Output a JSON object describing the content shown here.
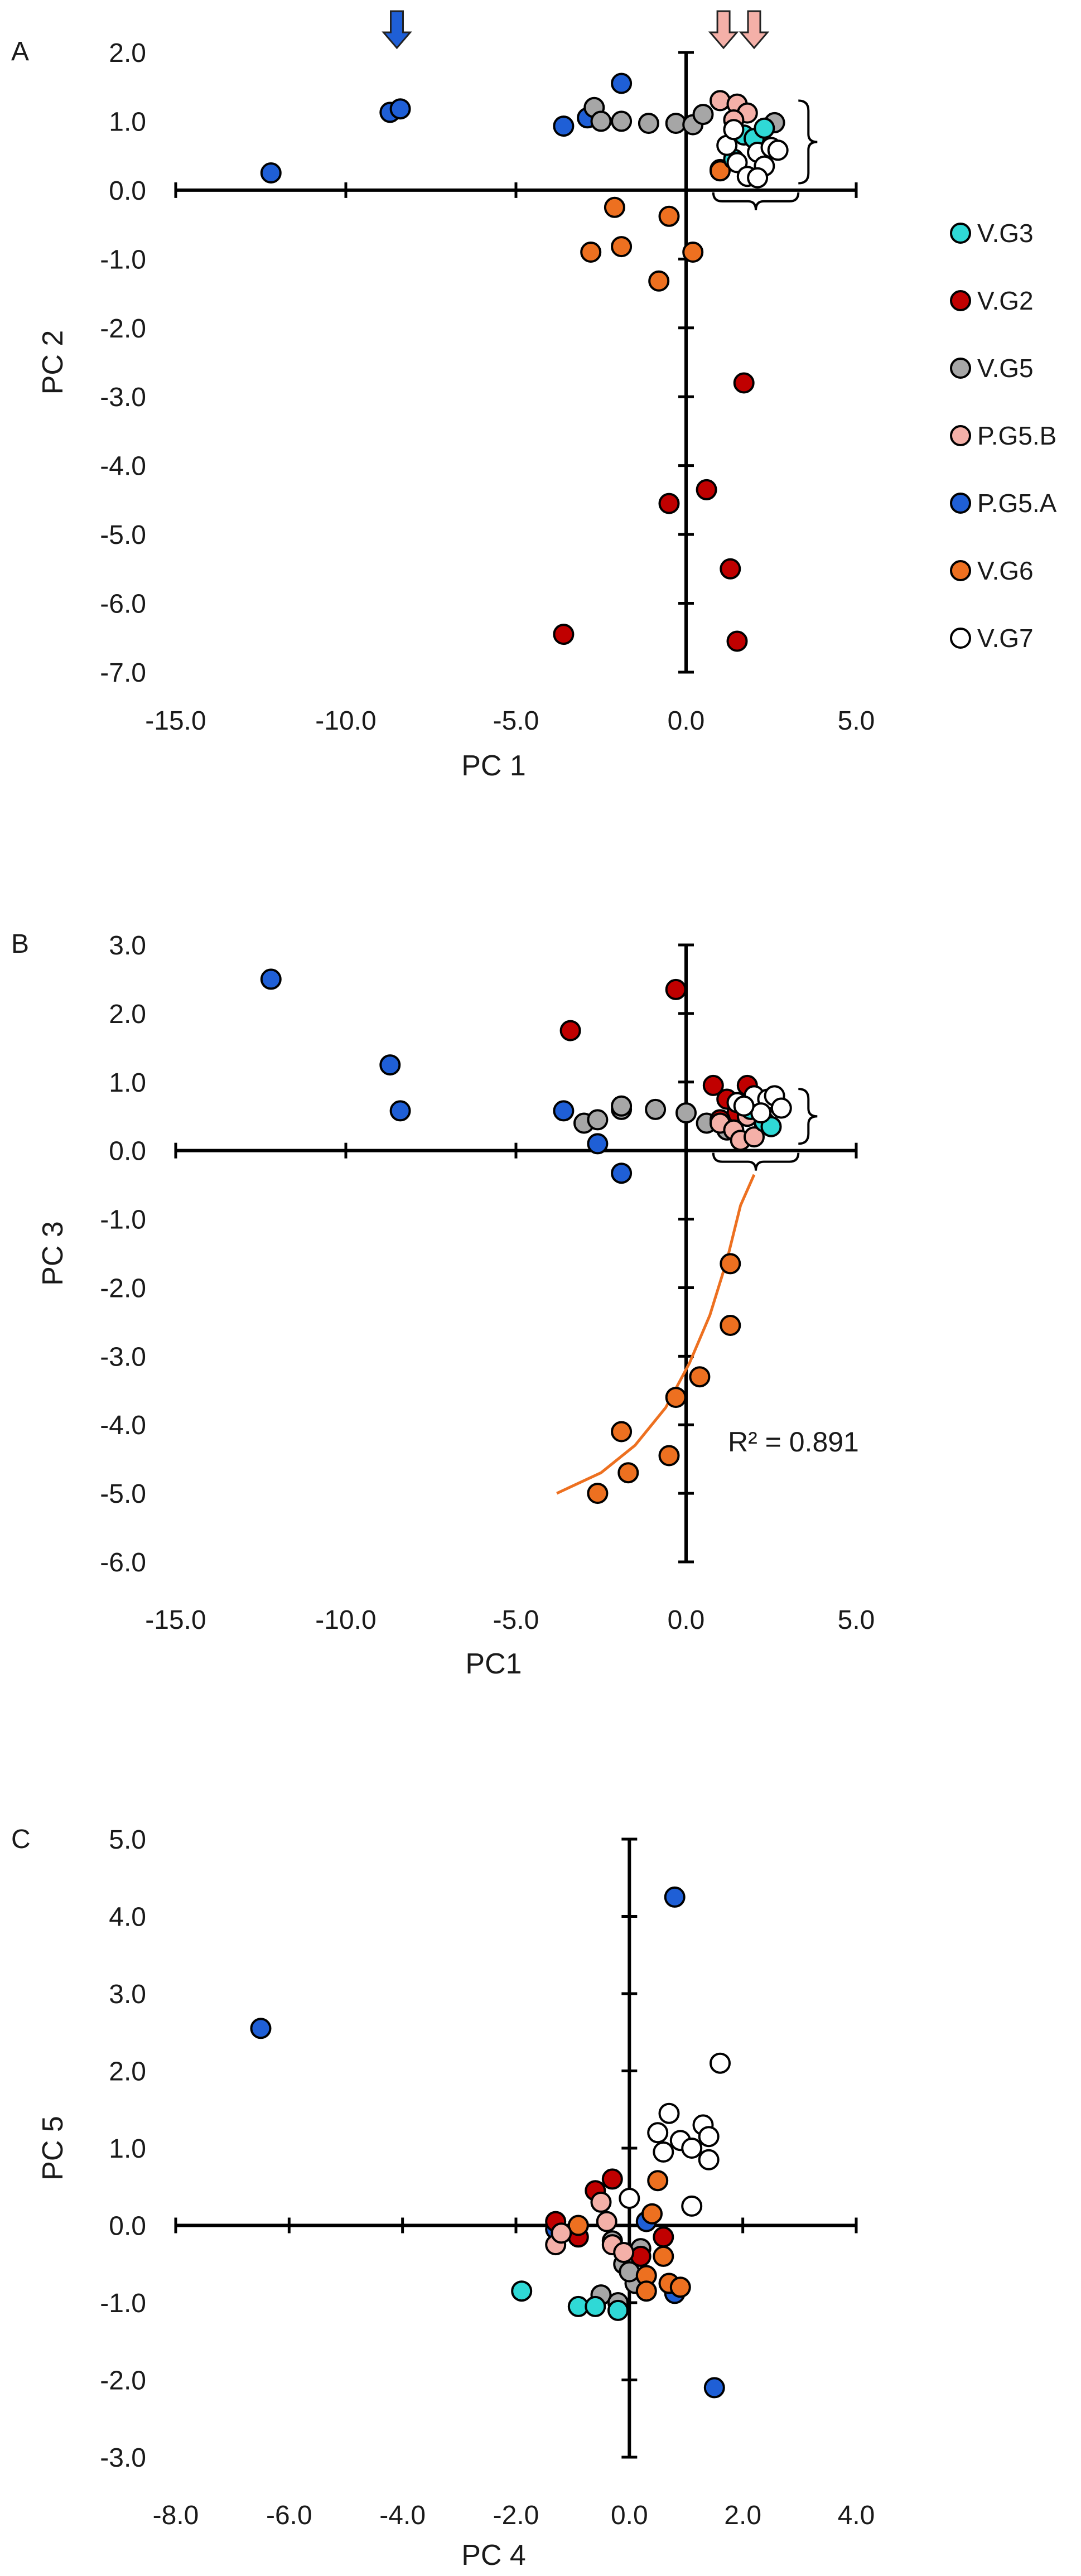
{
  "colors": {
    "V.G3": "#2fd9d6",
    "V.G2": "#c00000",
    "V.G5": "#a6a6a6",
    "P.G5.B": "#f4b0a8",
    "P.G5.A": "#1f5fd6",
    "V.G6": "#ed7020",
    "V.G7": "#ffffff",
    "arrow_blue": "#1f5fd6",
    "arrow_pink": "#f4b0a8",
    "fit_line": "#ed7020"
  },
  "legend": {
    "items": [
      "V.G3",
      "V.G2",
      "V.G5",
      "P.G5.B",
      "P.G5.A",
      "V.G6",
      "V.G7"
    ]
  },
  "chart_data": [
    {
      "type": "scatter",
      "panel": "A",
      "xlabel": "PC 1",
      "ylabel": "PC 2",
      "xlim": [
        -15,
        5
      ],
      "ylim": [
        -7,
        2
      ],
      "xticks": [
        -15,
        -10,
        -5,
        0,
        5
      ],
      "xtick_labels": [
        "-15.0",
        "-10.0",
        "-5.0",
        "0.0",
        "5.0"
      ],
      "yticks": [
        -7,
        -6,
        -5,
        -4,
        -3,
        -2,
        -1,
        0,
        1,
        2
      ],
      "ytick_labels": [
        "-7.0",
        "-6.0",
        "-5.0",
        "-4.0",
        "-3.0",
        "-2.0",
        "-1.0",
        "0.0",
        "1.0",
        "2.0"
      ],
      "arrows": [
        {
          "x": -8.5,
          "color": "arrow_blue"
        },
        {
          "x": 1.1,
          "color": "arrow_pink"
        },
        {
          "x": 2.0,
          "color": "arrow_pink"
        }
      ],
      "bracket": {
        "x_range": [
          0.8,
          3.3
        ],
        "y_range": [
          0.1,
          1.3
        ],
        "side": "right+bottom"
      },
      "series": [
        {
          "name": "P.G5.A",
          "points": [
            [
              -12.2,
              0.25
            ],
            [
              -8.7,
              1.13
            ],
            [
              -8.4,
              1.18
            ],
            [
              -3.6,
              0.93
            ],
            [
              -2.9,
              1.05
            ],
            [
              -1.9,
              1.55
            ]
          ]
        },
        {
          "name": "V.G5",
          "points": [
            [
              -2.7,
              1.2
            ],
            [
              -2.5,
              1.0
            ],
            [
              -1.9,
              1.0
            ],
            [
              -1.1,
              0.97
            ],
            [
              -0.3,
              0.97
            ],
            [
              0.2,
              0.95
            ],
            [
              0.5,
              1.1
            ],
            [
              2.6,
              0.98
            ]
          ]
        },
        {
          "name": "V.G2",
          "points": [
            [
              1.0,
              0.3
            ],
            [
              1.7,
              -2.8
            ],
            [
              0.6,
              -4.35
            ],
            [
              -0.5,
              -4.55
            ],
            [
              1.3,
              -5.5
            ],
            [
              -3.6,
              -6.45
            ],
            [
              1.5,
              -6.55
            ]
          ]
        },
        {
          "name": "V.G6",
          "points": [
            [
              -2.1,
              -0.25
            ],
            [
              -0.5,
              -0.38
            ],
            [
              -2.8,
              -0.9
            ],
            [
              -1.9,
              -0.82
            ],
            [
              0.2,
              -0.9
            ],
            [
              -0.8,
              -1.32
            ],
            [
              1.0,
              0.28
            ]
          ]
        },
        {
          "name": "P.G5.B",
          "points": [
            [
              1.0,
              1.3
            ],
            [
              1.5,
              1.25
            ],
            [
              1.8,
              1.12
            ],
            [
              1.4,
              1.02
            ]
          ]
        },
        {
          "name": "V.G3",
          "points": [
            [
              1.7,
              0.8
            ],
            [
              2.0,
              0.75
            ],
            [
              2.3,
              0.9
            ],
            [
              1.4,
              0.45
            ]
          ]
        },
        {
          "name": "V.G7",
          "points": [
            [
              1.2,
              0.65
            ],
            [
              1.5,
              0.4
            ],
            [
              1.8,
              0.2
            ],
            [
              2.1,
              0.55
            ],
            [
              2.3,
              0.35
            ],
            [
              2.5,
              0.62
            ],
            [
              2.1,
              0.18
            ],
            [
              1.4,
              0.88
            ],
            [
              2.7,
              0.58
            ]
          ]
        }
      ]
    },
    {
      "type": "scatter",
      "panel": "B",
      "xlabel": "PC1",
      "ylabel": "PC 3",
      "xlim": [
        -15,
        5
      ],
      "ylim": [
        -6,
        3
      ],
      "xticks": [
        -15,
        -10,
        -5,
        0,
        5
      ],
      "xtick_labels": [
        "-15.0",
        "-10.0",
        "-5.0",
        "0.0",
        "5.0"
      ],
      "yticks": [
        -6,
        -5,
        -4,
        -3,
        -2,
        -1,
        0,
        1,
        2,
        3
      ],
      "ytick_labels": [
        "-6.0",
        "-5.0",
        "-4.0",
        "-3.0",
        "-2.0",
        "-1.0",
        "0.0",
        "1.0",
        "2.0",
        "3.0"
      ],
      "annotation": {
        "text": "R² = 0.891"
      },
      "bracket": {
        "x_range": [
          0.8,
          3.3
        ],
        "y_range": [
          0.1,
          0.9
        ],
        "side": "right+bottom"
      },
      "fit_curve": [
        [
          -3.8,
          -5.0
        ],
        [
          -2.5,
          -4.7
        ],
        [
          -1.5,
          -4.3
        ],
        [
          -0.6,
          -3.75
        ],
        [
          0.1,
          -3.1
        ],
        [
          0.7,
          -2.4
        ],
        [
          1.2,
          -1.6
        ],
        [
          1.6,
          -0.8
        ],
        [
          2.0,
          -0.35
        ]
      ],
      "series": [
        {
          "name": "P.G5.A",
          "points": [
            [
              -12.2,
              2.5
            ],
            [
              -8.7,
              1.25
            ],
            [
              -8.4,
              0.58
            ],
            [
              -3.6,
              0.58
            ],
            [
              -2.6,
              0.1
            ],
            [
              -1.9,
              -0.33
            ]
          ]
        },
        {
          "name": "V.G5",
          "points": [
            [
              -3.0,
              0.4
            ],
            [
              -2.6,
              0.45
            ],
            [
              -1.9,
              0.6
            ],
            [
              -1.9,
              0.65
            ],
            [
              -0.9,
              0.6
            ],
            [
              0.0,
              0.55
            ],
            [
              0.6,
              0.4
            ],
            [
              1.2,
              0.3
            ],
            [
              2.3,
              0.4
            ]
          ]
        },
        {
          "name": "V.G2",
          "points": [
            [
              -3.4,
              1.75
            ],
            [
              -0.3,
              2.35
            ],
            [
              0.8,
              0.95
            ],
            [
              1.8,
              0.95
            ],
            [
              1.2,
              0.75
            ],
            [
              1.5,
              0.55
            ],
            [
              1.0,
              0.45
            ]
          ]
        },
        {
          "name": "V.G6",
          "points": [
            [
              1.3,
              -1.65
            ],
            [
              1.3,
              -2.55
            ],
            [
              0.4,
              -3.3
            ],
            [
              -0.3,
              -3.6
            ],
            [
              -1.9,
              -4.1
            ],
            [
              -0.5,
              -4.45
            ],
            [
              -1.7,
              -4.7
            ],
            [
              -2.6,
              -5.0
            ]
          ]
        },
        {
          "name": "P.G5.B",
          "points": [
            [
              1.0,
              0.4
            ],
            [
              1.4,
              0.3
            ],
            [
              1.6,
              0.15
            ],
            [
              2.0,
              0.2
            ],
            [
              1.8,
              0.5
            ]
          ]
        },
        {
          "name": "V.G3",
          "points": [
            [
              2.3,
              0.42
            ],
            [
              2.5,
              0.35
            ],
            [
              1.9,
              0.6
            ]
          ]
        },
        {
          "name": "V.G7",
          "points": [
            [
              1.5,
              0.7
            ],
            [
              2.0,
              0.8
            ],
            [
              2.4,
              0.75
            ],
            [
              2.6,
              0.8
            ],
            [
              2.2,
              0.55
            ],
            [
              1.7,
              0.65
            ],
            [
              2.8,
              0.62
            ]
          ]
        }
      ]
    },
    {
      "type": "scatter",
      "panel": "C",
      "xlabel": "PC 4",
      "ylabel": "PC 5",
      "xlim": [
        -8,
        4
      ],
      "ylim": [
        -3,
        5
      ],
      "xticks": [
        -8,
        -6,
        -4,
        -2,
        0,
        2,
        4
      ],
      "xtick_labels": [
        "-8.0",
        "-6.0",
        "-4.0",
        "-2.0",
        "0.0",
        "2.0",
        "4.0"
      ],
      "yticks": [
        -3,
        -2,
        -1,
        0,
        1,
        2,
        3,
        4,
        5
      ],
      "ytick_labels": [
        "-3.0",
        "-2.0",
        "-1.0",
        "0.0",
        "1.0",
        "2.0",
        "3.0",
        "4.0",
        "5.0"
      ],
      "series": [
        {
          "name": "P.G5.A",
          "points": [
            [
              -6.5,
              2.55
            ],
            [
              0.8,
              4.25
            ],
            [
              1.5,
              -2.1
            ],
            [
              0.8,
              -0.88
            ],
            [
              -1.3,
              -0.05
            ],
            [
              0.3,
              0.05
            ]
          ]
        },
        {
          "name": "V.G5",
          "points": [
            [
              -0.5,
              -0.9
            ],
            [
              -0.2,
              -1.0
            ],
            [
              0.1,
              -0.75
            ],
            [
              -0.1,
              -0.5
            ],
            [
              0.2,
              -0.3
            ],
            [
              -0.3,
              -0.2
            ],
            [
              0.0,
              -0.6
            ]
          ]
        },
        {
          "name": "V.G2",
          "points": [
            [
              -0.3,
              0.6
            ],
            [
              -0.6,
              0.45
            ],
            [
              -1.3,
              0.05
            ],
            [
              -0.9,
              -0.15
            ],
            [
              0.2,
              -0.4
            ],
            [
              0.6,
              -0.15
            ]
          ]
        },
        {
          "name": "V.G6",
          "points": [
            [
              0.4,
              0.15
            ],
            [
              0.6,
              -0.4
            ],
            [
              0.3,
              -0.65
            ],
            [
              0.7,
              -0.75
            ],
            [
              0.9,
              -0.8
            ],
            [
              0.3,
              -0.85
            ],
            [
              -0.9,
              0.0
            ],
            [
              0.5,
              0.58
            ]
          ]
        },
        {
          "name": "P.G5.B",
          "points": [
            [
              -1.3,
              -0.25
            ],
            [
              -0.5,
              0.3
            ],
            [
              -0.3,
              -0.25
            ],
            [
              -0.1,
              -0.35
            ],
            [
              -0.4,
              0.05
            ],
            [
              -1.2,
              -0.1
            ]
          ]
        },
        {
          "name": "V.G3",
          "points": [
            [
              -1.9,
              -0.85
            ],
            [
              -0.9,
              -1.05
            ],
            [
              -0.6,
              -1.05
            ],
            [
              -0.2,
              -1.1
            ]
          ]
        },
        {
          "name": "V.G7",
          "points": [
            [
              1.6,
              2.1
            ],
            [
              0.7,
              1.45
            ],
            [
              1.3,
              1.3
            ],
            [
              0.9,
              1.1
            ],
            [
              1.1,
              1.0
            ],
            [
              0.6,
              0.95
            ],
            [
              0.5,
              1.2
            ],
            [
              1.4,
              1.15
            ],
            [
              1.4,
              0.85
            ],
            [
              1.1,
              0.25
            ],
            [
              0.0,
              0.35
            ]
          ]
        }
      ]
    }
  ]
}
